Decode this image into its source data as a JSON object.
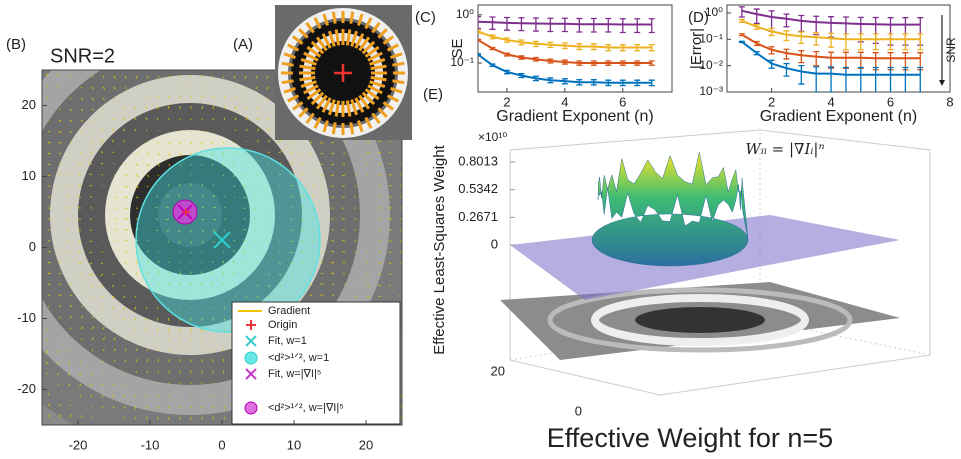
{
  "panels": {
    "A": {
      "label": "(A)"
    },
    "B": {
      "label": "(B)",
      "title": "SNR=2",
      "xlim": [
        -25,
        25
      ],
      "ylim": [
        -25,
        25
      ],
      "xticks": [
        -20,
        -10,
        0,
        10,
        20
      ],
      "yticks": [
        -20,
        -10,
        0,
        10,
        20
      ],
      "legend": [
        "Gradient",
        "Origin",
        "Fit, w=1",
        "<d²>¹ᐟ², w=1",
        "Fit, w=|∇I|⁵",
        "<d²>¹ᐟ², w=|∇I|⁵"
      ]
    },
    "E": {
      "label": "(E)",
      "z_multiplier": "×10¹⁰",
      "zlabel": "Effective Least-Squares Weight",
      "zticks": [
        0,
        0.2671,
        0.5342,
        0.8013
      ],
      "depth_ticks": [
        "20",
        "0"
      ],
      "title": "Effective Weight for n=5"
    },
    "formula": "Wᵢᵢ = |∇Iᵢ|ⁿ"
  },
  "chart_data": [
    {
      "type": "line",
      "label": "(C)",
      "ylabel": "SE",
      "xlabel": "Gradient Exponent (n)",
      "log_y": true,
      "xlim": [
        1,
        7.7
      ],
      "ylim": [
        0.025,
        1.6
      ],
      "xticks": [
        2,
        4,
        6
      ],
      "yticks": [
        {
          "value": 1,
          "label": "10⁰"
        },
        {
          "value": 0.1,
          "label": "10⁻¹"
        }
      ],
      "x": [
        1,
        1.5,
        2,
        2.5,
        3,
        3.5,
        4,
        4.5,
        5,
        5.5,
        6,
        6.5,
        7
      ],
      "series": [
        {
          "color": "#7e2f8e",
          "values": [
            0.72,
            0.7,
            0.68,
            0.67,
            0.66,
            0.65,
            0.65,
            0.64,
            0.64,
            0.64,
            0.63,
            0.63,
            0.63
          ],
          "errors": [
            0.2,
            0.2,
            0.2,
            0.2,
            0.2,
            0.2,
            0.2,
            0.2,
            0.2,
            0.2,
            0.2,
            0.2,
            0.2
          ]
        },
        {
          "color": "#edb120",
          "values": [
            0.45,
            0.35,
            0.3,
            0.27,
            0.25,
            0.24,
            0.23,
            0.22,
            0.22,
            0.21,
            0.21,
            0.21,
            0.21
          ],
          "errors": [
            0.03,
            0.03,
            0.03,
            0.03,
            0.03,
            0.03,
            0.03,
            0.03,
            0.03,
            0.03,
            0.03,
            0.03,
            0.03
          ]
        },
        {
          "color": "#d95319",
          "values": [
            0.3,
            0.2,
            0.15,
            0.13,
            0.12,
            0.11,
            0.105,
            0.1,
            0.1,
            0.1,
            0.1,
            0.1,
            0.1
          ],
          "errors": [
            0.01,
            0.01,
            0.01,
            0.01,
            0.01,
            0.01,
            0.01,
            0.01,
            0.01,
            0.01,
            0.01,
            0.01,
            0.01
          ]
        },
        {
          "color": "#0072bd",
          "values": [
            0.15,
            0.09,
            0.065,
            0.055,
            0.048,
            0.044,
            0.042,
            0.04,
            0.04,
            0.039,
            0.039,
            0.039,
            0.039
          ],
          "errors": [
            0.005,
            0.005,
            0.005,
            0.005,
            0.005,
            0.005,
            0.005,
            0.005,
            0.005,
            0.005,
            0.005,
            0.005,
            0.005
          ]
        }
      ]
    },
    {
      "type": "line",
      "label": "(D)",
      "ylabel": "|Error|",
      "xlabel": "Gradient Exponent (n)",
      "arrow_label": "SNR",
      "log_y": true,
      "xlim": [
        0.5,
        8
      ],
      "ylim": [
        0.001,
        2
      ],
      "xticks": [
        2,
        4,
        6,
        8
      ],
      "yticks": [
        {
          "value": 1,
          "label": "10⁰"
        },
        {
          "value": 0.1,
          "label": "10⁻¹"
        },
        {
          "value": 0.01,
          "label": "10⁻²"
        },
        {
          "value": 0.001,
          "label": "10⁻³"
        }
      ],
      "x": [
        1,
        1.5,
        2,
        2.5,
        3,
        3.5,
        4,
        4.5,
        5,
        5.5,
        6,
        6.5,
        7
      ],
      "series": [
        {
          "color": "#7e2f8e",
          "values": [
            1.2,
            0.9,
            0.7,
            0.6,
            0.5,
            0.45,
            0.42,
            0.4,
            0.38,
            0.37,
            0.36,
            0.36,
            0.36
          ],
          "errors": [
            0.5,
            0.5,
            0.5,
            0.3,
            0.3,
            0.3,
            0.3,
            0.3,
            0.3,
            0.3,
            0.3,
            0.3,
            0.3
          ]
        },
        {
          "color": "#edb120",
          "values": [
            0.5,
            0.3,
            0.2,
            0.15,
            0.13,
            0.12,
            0.11,
            0.1,
            0.1,
            0.1,
            0.1,
            0.1,
            0.1
          ],
          "errors": [
            0.06,
            0.06,
            0.06,
            0.06,
            0.06,
            0.06,
            0.06,
            0.06,
            0.06,
            0.06,
            0.06,
            0.06,
            0.06
          ]
        },
        {
          "color": "#d95319",
          "values": [
            0.15,
            0.07,
            0.04,
            0.03,
            0.025,
            0.022,
            0.02,
            0.02,
            0.02,
            0.019,
            0.019,
            0.019,
            0.019
          ],
          "errors": [
            0.012,
            0.012,
            0.012,
            0.012,
            0.012,
            0.012,
            0.012,
            0.012,
            0.012,
            0.012,
            0.012,
            0.012,
            0.012
          ]
        },
        {
          "color": "#0072bd",
          "values": [
            0.08,
            0.03,
            0.012,
            0.008,
            0.006,
            0.005,
            0.005,
            0.0045,
            0.0045,
            0.0045,
            0.0045,
            0.0045,
            0.0045
          ],
          "errors": [
            0.004,
            0.004,
            0.004,
            0.004,
            0.004,
            0.004,
            0.004,
            0.004,
            0.004,
            0.004,
            0.004,
            0.004,
            0.004
          ]
        }
      ]
    }
  ]
}
